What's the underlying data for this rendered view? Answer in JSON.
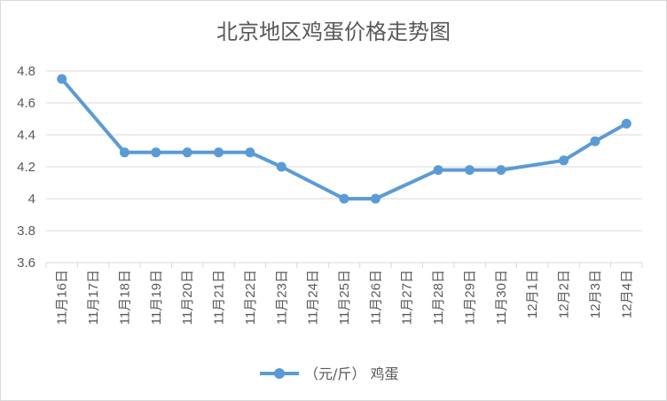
{
  "chart_data": {
    "type": "line",
    "title": "北京地区鸡蛋价格走势图",
    "categories": [
      "11月16日",
      "11月17日",
      "11月18日",
      "11月19日",
      "11月20日",
      "11月21日",
      "11月22日",
      "11月23日",
      "11月24日",
      "11月25日",
      "11月26日",
      "11月27日",
      "11月28日",
      "11月29日",
      "11月30日",
      "12月1日",
      "12月2日",
      "12月3日",
      "12月4日"
    ],
    "series": [
      {
        "name": "（元/斤） 鸡蛋",
        "color": "#5b9bd5",
        "values": [
          4.75,
          null,
          4.29,
          4.29,
          4.29,
          4.29,
          4.29,
          4.2,
          null,
          4.0,
          4.0,
          null,
          4.18,
          4.18,
          4.18,
          null,
          4.24,
          4.36,
          4.47
        ]
      }
    ],
    "ylim": [
      3.6,
      4.8
    ],
    "yticks": [
      "3.6",
      "3.8",
      "4",
      "4.2",
      "4.4",
      "4.6",
      "4.8"
    ],
    "grid": true,
    "legend": "bottom"
  }
}
